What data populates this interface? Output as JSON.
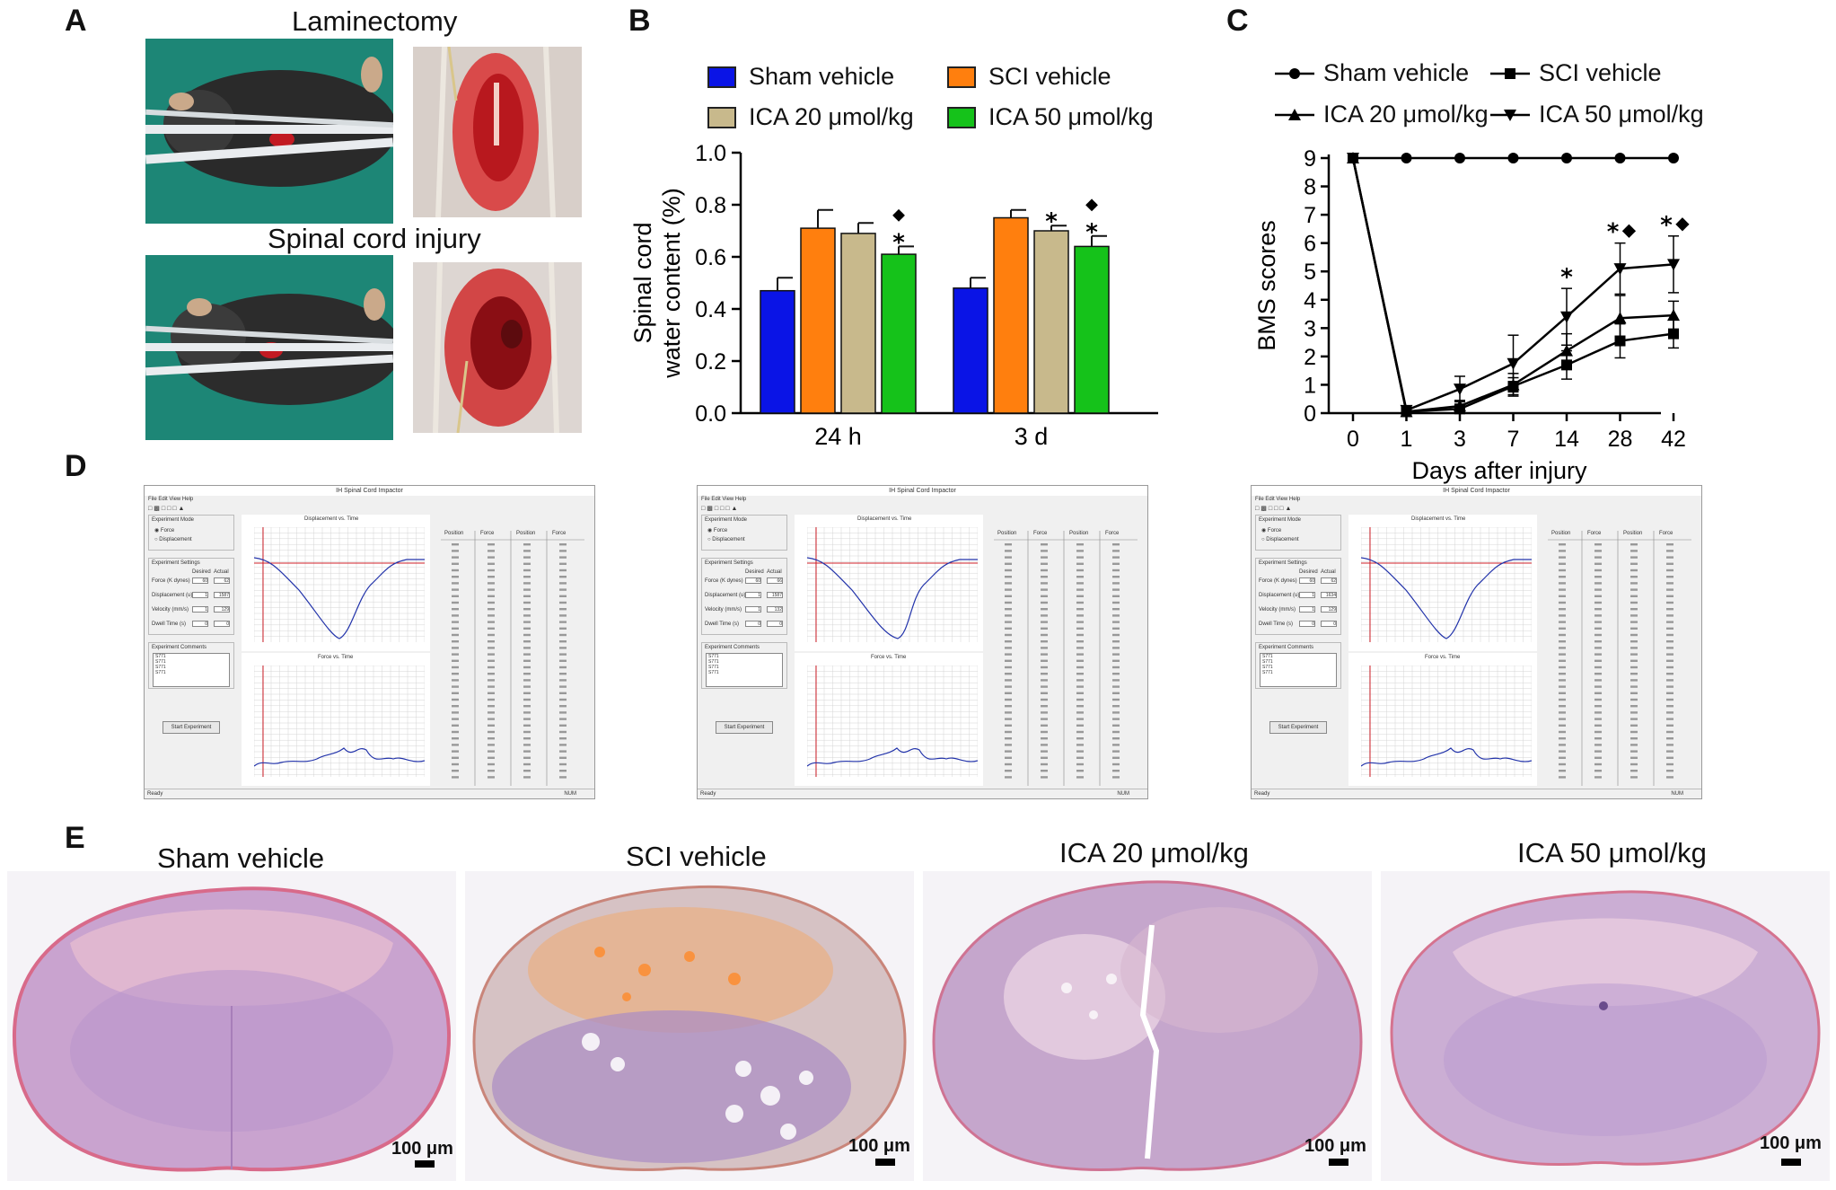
{
  "panels": {
    "a": {
      "letter": "A",
      "title_top": "Laminectomy",
      "title_bottom": "Spinal cord injury"
    },
    "b": {
      "letter": "B",
      "legend": [
        {
          "label": "Sham vehicle",
          "color": "#0a14e6"
        },
        {
          "label": "SCI vehicle",
          "color": "#ff7f0e"
        },
        {
          "label": "ICA 20 μmol/kg",
          "color": "#c8b98c"
        },
        {
          "label": "ICA 50 μmol/kg",
          "color": "#15c21a"
        }
      ],
      "significance": {
        "star": "*",
        "diamond": "◆"
      }
    },
    "c": {
      "letter": "C",
      "legend": [
        {
          "label": "Sham vehicle",
          "marker": "●"
        },
        {
          "label": "SCI vehicle",
          "marker": "■"
        },
        {
          "label": "ICA 20 μmol/kg",
          "marker": "▲"
        },
        {
          "label": "ICA 50 μmol/kg",
          "marker": "▼"
        }
      ],
      "significance": {
        "star": "*",
        "diamond": "◆"
      }
    },
    "d": {
      "letter": "D",
      "window_title": "IH Spinal Cord Impactor",
      "menu": "File   Edit   View   Help",
      "experiment_mode": "Experiment Mode",
      "mode_force": "Force",
      "mode_displacement": "Displacement",
      "experiment_settings": "Experiment Settings",
      "col_desired": "Desired",
      "col_actual": "Actual",
      "field_force": "Force (K dynes)",
      "field_displacement": "Displacement (u)",
      "field_velocity": "Velocity (mm/s)",
      "field_dwell": "Dwell Time (s)",
      "experiment_comments": "Experiment Comments",
      "comment_lines": [
        "S771",
        "S771",
        "S771",
        "S771"
      ],
      "start_button": "Start Experiment",
      "plot_top_title": "Displacement vs. Time",
      "plot_bottom_title": "Force vs. Time",
      "table_headers": [
        "Position",
        "Force",
        "Position",
        "Force"
      ],
      "status_ready": "Ready",
      "status_num": "NUM",
      "windows": [
        {
          "force_desired": "60",
          "force_actual": "62",
          "disp_desired": "1",
          "disp_actual": "1587",
          "vel_desired": "1",
          "vel_actual": "129",
          "dwell_desired": "0",
          "dwell_actual": "0"
        },
        {
          "force_desired": "60",
          "force_actual": "66",
          "disp_desired": "1",
          "disp_actual": "1587",
          "vel_desired": "1",
          "vel_actual": "132",
          "dwell_desired": "0",
          "dwell_actual": "0"
        },
        {
          "force_desired": "60",
          "force_actual": "62",
          "disp_desired": "1",
          "disp_actual": "1634",
          "vel_desired": "1",
          "vel_actual": "129",
          "dwell_desired": "0",
          "dwell_actual": "0"
        }
      ]
    },
    "e": {
      "letter": "E",
      "groups": [
        {
          "title": "Sham vehicle",
          "scale": "100 μm"
        },
        {
          "title": "SCI vehicle",
          "scale": "100 μm"
        },
        {
          "title": "ICA 20 μmol/kg",
          "scale": "100 μm"
        },
        {
          "title": "ICA 50 μmol/kg",
          "scale": "100 μm"
        }
      ]
    }
  },
  "chart_data": [
    {
      "type": "bar",
      "title": "",
      "xlabel": "",
      "ylabel": "Spinal cord water content (%)",
      "ylabel_lines": [
        "Spinal cord",
        "water content (%)"
      ],
      "categories": [
        "24 h",
        "3 d"
      ],
      "ylim": [
        0.0,
        1.0
      ],
      "yticks": [
        "0.0",
        "0.2",
        "0.4",
        "0.6",
        "0.8",
        "1.0"
      ],
      "series": [
        {
          "name": "Sham vehicle",
          "values": [
            0.47,
            0.48
          ],
          "errors": [
            0.05,
            0.04
          ]
        },
        {
          "name": "SCI vehicle",
          "values": [
            0.71,
            0.75
          ],
          "errors": [
            0.07,
            0.03
          ]
        },
        {
          "name": "ICA 20 μmol/kg",
          "values": [
            0.69,
            0.7
          ],
          "errors": [
            0.04,
            0.02
          ]
        },
        {
          "name": "ICA 50 μmol/kg",
          "values": [
            0.61,
            0.64
          ],
          "errors": [
            0.03,
            0.04
          ]
        }
      ],
      "annotations": [
        {
          "category": "24 h",
          "series": "ICA 50 μmol/kg",
          "marks": [
            "*",
            "◆"
          ]
        },
        {
          "category": "3 d",
          "series": "ICA 20 μmol/kg",
          "marks": [
            "*"
          ]
        },
        {
          "category": "3 d",
          "series": "ICA 50 μmol/kg",
          "marks": [
            "*",
            "◆"
          ]
        }
      ]
    },
    {
      "type": "line",
      "title": "",
      "xlabel": "Days after injury",
      "ylabel": "BMS scores",
      "x": [
        "0",
        "1",
        "3",
        "7",
        "14",
        "28",
        "42"
      ],
      "ylim": [
        0,
        9
      ],
      "yticks": [
        "0",
        "1",
        "2",
        "3",
        "4",
        "5",
        "6",
        "7",
        "8",
        "9"
      ],
      "series": [
        {
          "name": "Sham vehicle",
          "marker": "circle",
          "values": [
            9,
            9,
            9,
            9,
            9,
            9,
            9
          ],
          "errors": [
            0,
            0,
            0,
            0,
            0,
            0,
            0
          ]
        },
        {
          "name": "SCI vehicle",
          "marker": "square",
          "values": [
            9,
            0.05,
            0.15,
            0.95,
            1.7,
            2.55,
            2.8
          ],
          "errors": [
            0,
            0.05,
            0.1,
            0.3,
            0.5,
            0.6,
            0.5
          ]
        },
        {
          "name": "ICA 20 μmol/kg",
          "marker": "triangle-up",
          "values": [
            9,
            0.05,
            0.25,
            1.0,
            2.2,
            3.35,
            3.45
          ],
          "errors": [
            0,
            0.05,
            0.2,
            0.4,
            0.6,
            0.8,
            0.5
          ]
        },
        {
          "name": "ICA 50 μmol/kg",
          "marker": "triangle-down",
          "values": [
            9,
            0.1,
            0.85,
            1.75,
            3.4,
            5.1,
            5.25
          ],
          "errors": [
            0,
            0.1,
            0.45,
            1.0,
            1.0,
            0.9,
            1.0
          ]
        }
      ],
      "annotations": [
        {
          "x": "14",
          "marks": [
            "*"
          ]
        },
        {
          "x": "28",
          "marks": [
            "*",
            "◆"
          ]
        },
        {
          "x": "42",
          "marks": [
            "*",
            "◆"
          ]
        }
      ]
    }
  ]
}
